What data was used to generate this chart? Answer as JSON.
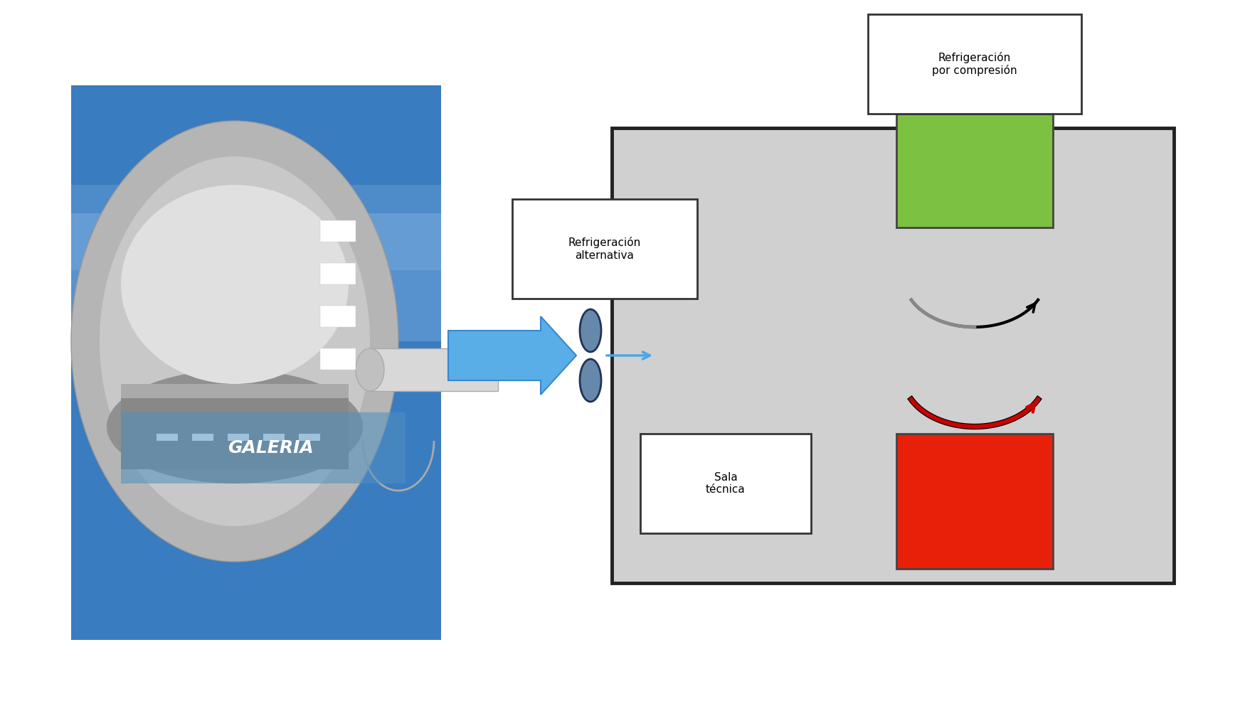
{
  "bg_color": "#ffffff",
  "galeria_label": "GALERIA",
  "refrig_alt_label": "Refrigeración\nalternativa",
  "refrig_comp_label": "Refrigeración\npor compresión",
  "sala_tecnica_label": "Sala\ntécnica",
  "room_color": "#d0d0d0",
  "green_rect_color": "#7dc142",
  "red_rect_color": "#e8200a",
  "arrow_blue_color": "#4da6e8",
  "black_arrow_color": "#1a1a1a",
  "red_arrow_color": "#cc0000",
  "label_box_color": "#ffffff",
  "room_border_color": "#222222",
  "tunnel_bg_color": "#3a7cc0",
  "tunnel_wall_color": "#b8b8b8",
  "tunnel_inner_color": "#c8c8c8"
}
